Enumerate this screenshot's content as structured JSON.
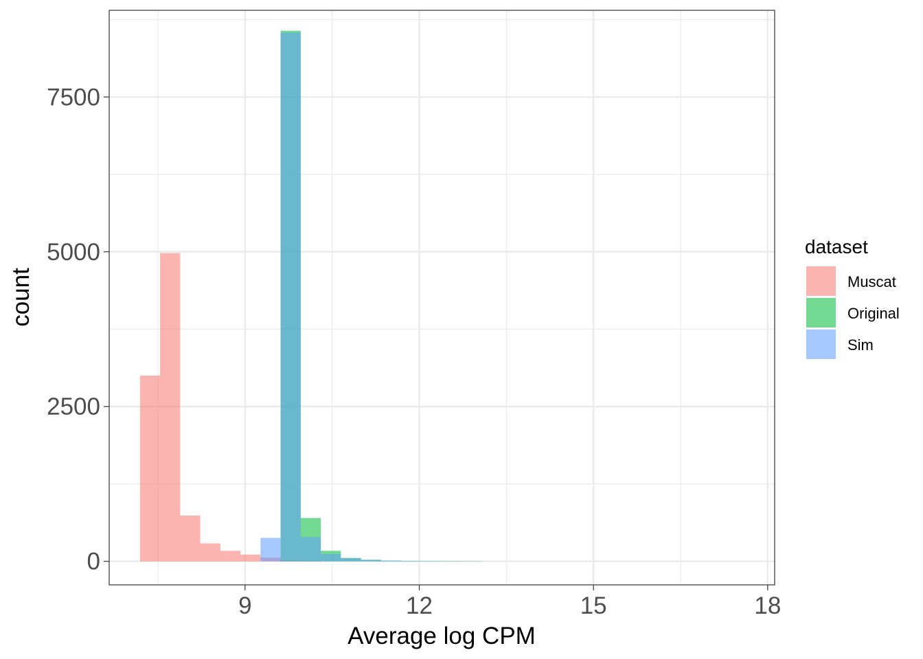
{
  "chart_data": {
    "type": "bar",
    "subtype": "overlapping histogram",
    "xlabel": "Average log CPM",
    "ylabel": "count",
    "xlim": [
      6.66,
      18.12
    ],
    "ylim": [
      -380,
      8900
    ],
    "x_ticks": [
      9,
      12,
      15,
      18
    ],
    "x_tick_labels": [
      "9",
      "12",
      "15",
      "18"
    ],
    "y_ticks": [
      0,
      2500,
      5000,
      7500
    ],
    "y_tick_labels": [
      "0",
      "2500",
      "5000",
      "7500"
    ],
    "grid": true,
    "legend": {
      "title": "dataset",
      "position": "right",
      "entries": [
        "Muscat",
        "Original",
        "Sim"
      ]
    },
    "bin_width": 0.346,
    "series": [
      {
        "name": "Muscat",
        "color": "#F8766D",
        "bins": [
          {
            "x0": 7.19,
            "value": 3000
          },
          {
            "x0": 7.536,
            "value": 4980
          },
          {
            "x0": 7.882,
            "value": 740
          },
          {
            "x0": 8.228,
            "value": 290
          },
          {
            "x0": 8.574,
            "value": 170
          },
          {
            "x0": 8.92,
            "value": 110
          },
          {
            "x0": 9.266,
            "value": 60
          },
          {
            "x0": 9.612,
            "value": 20
          },
          {
            "x0": 9.958,
            "value": 10
          }
        ]
      },
      {
        "name": "Original",
        "color": "#00BA38",
        "bins": [
          {
            "x0": 9.612,
            "value": 8570
          },
          {
            "x0": 9.958,
            "value": 700
          },
          {
            "x0": 10.304,
            "value": 170
          },
          {
            "x0": 10.65,
            "value": 55
          },
          {
            "x0": 10.996,
            "value": 25
          },
          {
            "x0": 11.342,
            "value": 12
          },
          {
            "x0": 11.688,
            "value": 8
          },
          {
            "x0": 12.034,
            "value": 5
          },
          {
            "x0": 12.38,
            "value": 4
          },
          {
            "x0": 12.726,
            "value": 3
          }
        ]
      },
      {
        "name": "Sim",
        "color": "#619CFF",
        "bins": [
          {
            "x0": 9.266,
            "value": 380
          },
          {
            "x0": 9.612,
            "value": 8540
          },
          {
            "x0": 9.958,
            "value": 390
          },
          {
            "x0": 10.304,
            "value": 120
          },
          {
            "x0": 10.65,
            "value": 50
          },
          {
            "x0": 10.996,
            "value": 25
          },
          {
            "x0": 11.342,
            "value": 12
          },
          {
            "x0": 11.688,
            "value": 8
          },
          {
            "x0": 12.034,
            "value": 5
          },
          {
            "x0": 12.38,
            "value": 4
          },
          {
            "x0": 12.726,
            "value": 3
          }
        ]
      }
    ]
  }
}
